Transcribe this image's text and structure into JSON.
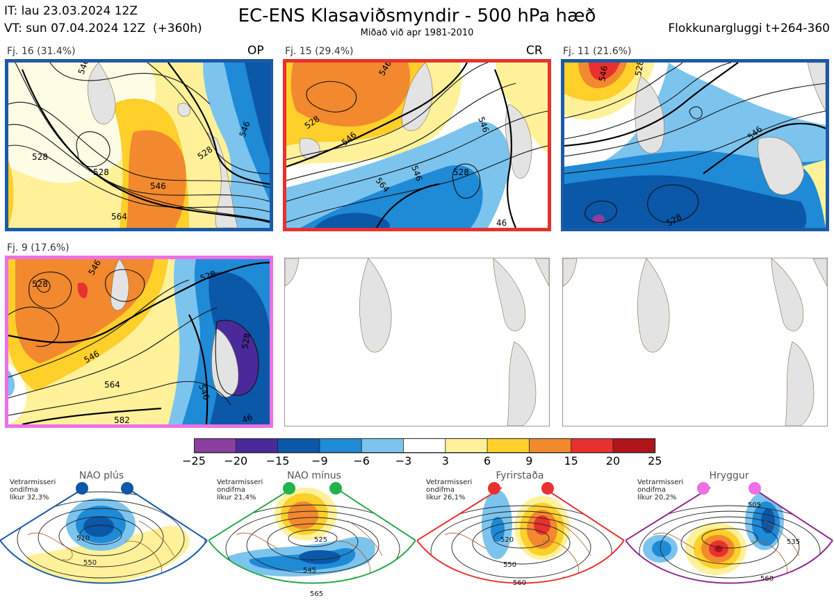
{
  "header": {
    "it_line": "IT: lau 23.03.2024 12Z",
    "vt_line": "VT: sun 07.04.2024 12Z  (+360h)",
    "title": "EC-ENS Klasaviðsmyndir - 500 hPa hæð",
    "subtitle": "Miðað við apr 1981-2010",
    "window": "Flokkunargluggi t+264-360"
  },
  "clusters": [
    {
      "label": "Fj. 16 (31.4%)",
      "tag": "OP",
      "frame_color": "#1b5aa6",
      "contours": [
        "546",
        "528",
        "528",
        "546",
        "528",
        "564",
        "546"
      ]
    },
    {
      "label": "Fj. 15 (29.4%)",
      "tag": "CR",
      "frame_color": "#e8312f",
      "contours": [
        "546",
        "528",
        "546",
        "546",
        "564",
        "528",
        "546",
        "46"
      ]
    },
    {
      "label": "Fj. 11 (21.6%)",
      "tag": "",
      "frame_color": "#1b5aa6",
      "contours": [
        "546",
        "528",
        "546",
        "528"
      ]
    },
    {
      "label": "Fj. 9 (17.6%)",
      "tag": "",
      "frame_color": "#ee6fe6",
      "contours": [
        "528",
        "546",
        "528",
        "546",
        "564",
        "546",
        "582",
        "528",
        "46"
      ]
    }
  ],
  "colorbar": {
    "ticks": [
      "−25",
      "−20",
      "−15",
      "−9",
      "−6",
      "−3",
      "3",
      "6",
      "9",
      "15",
      "20",
      "25"
    ],
    "colors": [
      "#8b3fa0",
      "#4a2a9a",
      "#0b57a8",
      "#1f8ad6",
      "#7cc4ee",
      "#ffffff",
      "#fff19a",
      "#ffcf2a",
      "#f2892e",
      "#e8312f",
      "#b0141a"
    ]
  },
  "regimes": [
    {
      "name": "NAO plús",
      "caption": "Vetrarmisseri\nondifma\nlíkur 32,3%",
      "dot_color": "#0b57a8",
      "frame_color": "#1b5aa6",
      "contours": [
        "510",
        "550"
      ]
    },
    {
      "name": "NAO mínus",
      "caption": "Vetrarmisseri\nondifma\nlíkur 21,4%",
      "dot_color": "#22b24c",
      "frame_color": "#2aa84a",
      "contours": [
        "525",
        "545",
        "565"
      ]
    },
    {
      "name": "Fyrirstaða",
      "caption": "Vetrarmisseri\nondifma\nlíkur 26,1%",
      "dot_color": "#e8312f",
      "frame_color": "#e8312f",
      "contours": [
        "520",
        "550",
        "560"
      ]
    },
    {
      "name": "Hryggur",
      "caption": "Vetrarmisseri\nondifma\nlíkur 20,2%",
      "dot_color": "#ee6fe6",
      "frame_color": "#8e2a8e",
      "contours": [
        "505",
        "535",
        "560"
      ]
    }
  ]
}
